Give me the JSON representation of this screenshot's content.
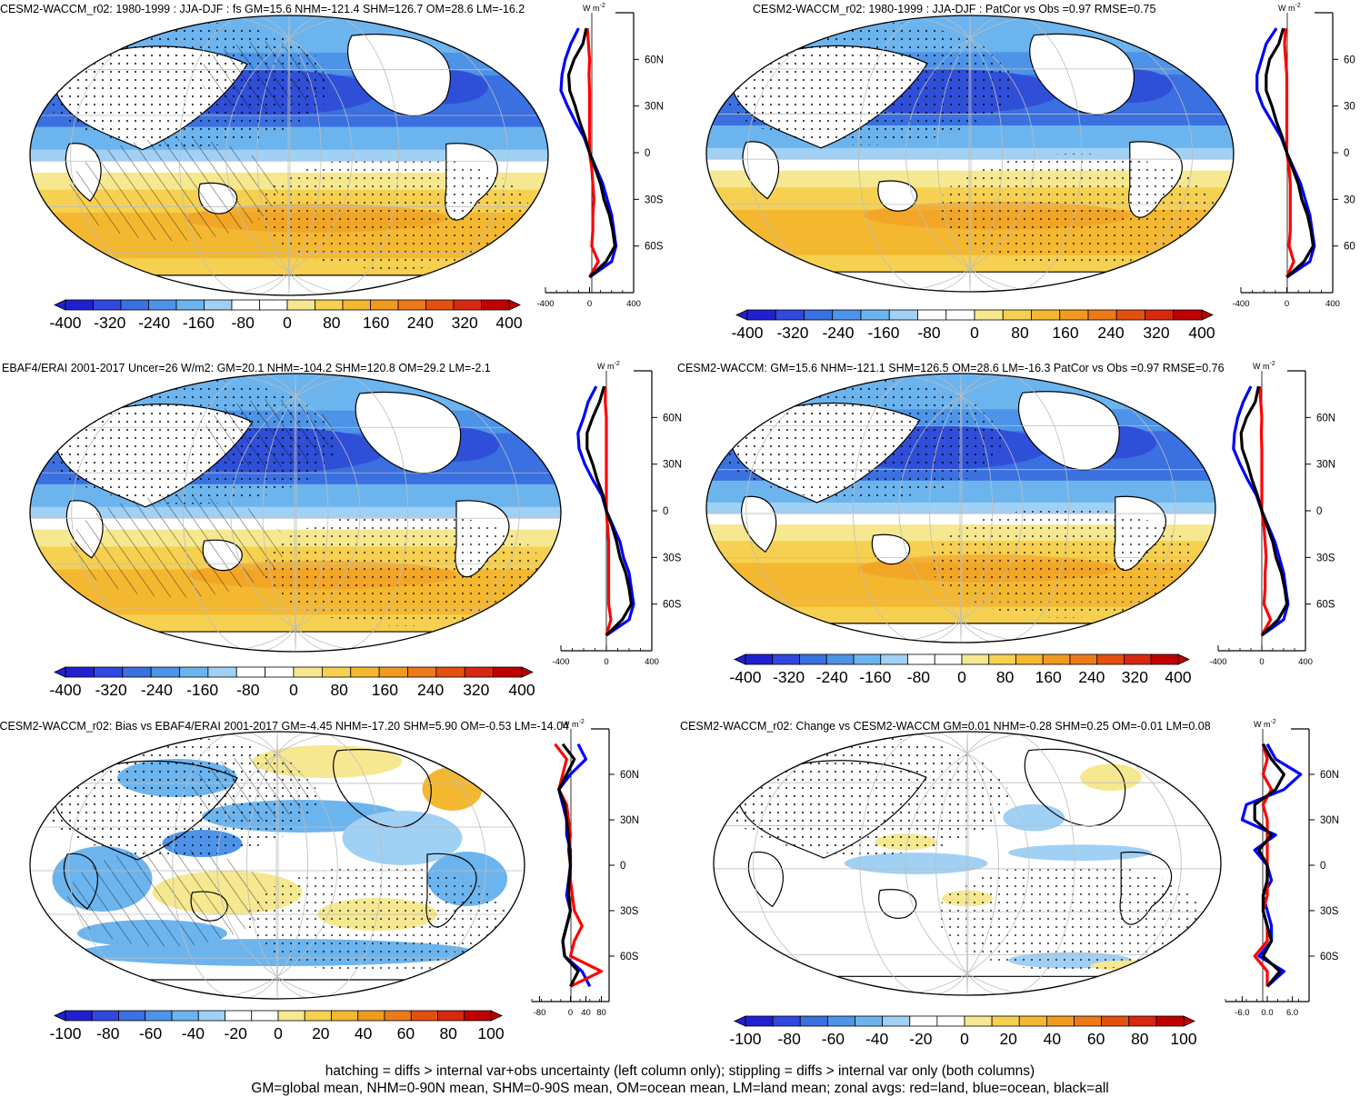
{
  "chart_data": [
    {
      "type": "heatmap",
      "title": "CESM2-WACCM_r02: 1980-1999 : JJA-DJF : fs GM=15.6 NHM=-121.4 SHM=126.7 OM=28.6 LM=-16.2",
      "colorbar": {
        "ticks": [
          "-400",
          "-320",
          "-240",
          "-160",
          "-80",
          "0",
          "80",
          "160",
          "240",
          "320",
          "400"
        ],
        "range": [
          -400,
          400
        ]
      },
      "zonal": {
        "xticks": [
          "-400",
          "0",
          "400"
        ],
        "xlim": [
          -400,
          400
        ],
        "unit": "W m",
        "unit_sup": "-2",
        "yticks": [
          "60N",
          "30N",
          "0",
          "30S",
          "60S"
        ],
        "lat": [
          80,
          70,
          60,
          50,
          40,
          30,
          20,
          10,
          0,
          -10,
          -20,
          -30,
          -40,
          -50,
          -60,
          -70,
          -80
        ],
        "land": [
          -20,
          -10,
          0,
          -5,
          0,
          0,
          0,
          0,
          0,
          20,
          30,
          40,
          30,
          30,
          20,
          80,
          0
        ],
        "ocean": [
          -100,
          -170,
          -220,
          -250,
          -260,
          -200,
          -130,
          -50,
          0,
          60,
          120,
          160,
          200,
          220,
          240,
          200,
          0
        ],
        "all": [
          -30,
          -60,
          -140,
          -190,
          -180,
          -130,
          -90,
          -40,
          0,
          50,
          100,
          130,
          180,
          210,
          230,
          150,
          0
        ]
      }
    },
    {
      "type": "heatmap",
      "title": "CESM2-WACCM_r02: 1980-1999 : JJA-DJF : PatCor vs Obs =0.97 RMSE=0.75",
      "colorbar": {
        "ticks": [
          "-400",
          "-320",
          "-240",
          "-160",
          "-80",
          "0",
          "80",
          "160",
          "240",
          "320",
          "400"
        ],
        "range": [
          -400,
          400
        ]
      },
      "zonal": {
        "xticks": [
          "-400",
          "0",
          "400"
        ],
        "xlim": [
          -400,
          400
        ],
        "unit": "W m",
        "unit_sup": "-2",
        "yticks": [
          "60",
          "30",
          "0",
          "30",
          "60"
        ],
        "lat": [
          80,
          70,
          60,
          50,
          40,
          30,
          20,
          10,
          0,
          -10,
          -20,
          -30,
          -40,
          -50,
          -60,
          -70,
          -80
        ],
        "land": [
          -10,
          -20,
          -10,
          0,
          0,
          0,
          0,
          0,
          0,
          20,
          30,
          30,
          30,
          30,
          20,
          60,
          0
        ],
        "ocean": [
          -90,
          -180,
          -220,
          -260,
          -260,
          -210,
          -130,
          -50,
          0,
          60,
          120,
          160,
          200,
          220,
          240,
          200,
          0
        ],
        "all": [
          -30,
          -70,
          -150,
          -180,
          -180,
          -130,
          -90,
          -40,
          0,
          50,
          100,
          130,
          180,
          210,
          230,
          150,
          0
        ]
      }
    },
    {
      "type": "heatmap",
      "title": "EBAF4/ERAI 2001-2017 Uncer=26 W/m2: GM=20.1 NHM=-104.2 SHM=120.8 OM=29.2 LM=-2.1",
      "colorbar": {
        "ticks": [
          "-400",
          "-320",
          "-240",
          "-160",
          "-80",
          "0",
          "80",
          "160",
          "240",
          "320",
          "400"
        ],
        "range": [
          -400,
          400
        ]
      },
      "zonal": {
        "xticks": [
          "-400",
          "0",
          "400"
        ],
        "xlim": [
          -400,
          400
        ],
        "unit": "W m",
        "unit_sup": "-2",
        "yticks": [
          "60N",
          "30N",
          "0",
          "30S",
          "60S"
        ],
        "lat": [
          80,
          70,
          60,
          50,
          40,
          30,
          20,
          10,
          0,
          -10,
          -20,
          -30,
          -40,
          -50,
          -60,
          -70,
          -80
        ],
        "land": [
          -10,
          -10,
          0,
          0,
          0,
          0,
          0,
          0,
          0,
          10,
          20,
          20,
          20,
          20,
          20,
          40,
          0
        ],
        "ocean": [
          -90,
          -160,
          -200,
          -250,
          -240,
          -190,
          -120,
          -40,
          0,
          60,
          120,
          150,
          200,
          220,
          240,
          200,
          0
        ],
        "all": [
          -20,
          -60,
          -120,
          -170,
          -170,
          -120,
          -80,
          -30,
          0,
          50,
          90,
          120,
          170,
          200,
          220,
          140,
          0
        ]
      }
    },
    {
      "type": "heatmap",
      "title": "CESM2-WACCM: GM=15.6 NHM=-121.1 SHM=126.5 OM=28.6 LM=-16.3 PatCor vs Obs =0.97 RMSE=0.76",
      "colorbar": {
        "ticks": [
          "-400",
          "-320",
          "-240",
          "-160",
          "-80",
          "0",
          "80",
          "160",
          "240",
          "320",
          "400"
        ],
        "range": [
          -400,
          400
        ]
      },
      "zonal": {
        "xticks": [
          "-400",
          "0",
          "400"
        ],
        "xlim": [
          -400,
          400
        ],
        "unit": "W m",
        "unit_sup": "-2",
        "yticks": [
          "60N",
          "30N",
          "0",
          "30S",
          "60S"
        ],
        "lat": [
          80,
          70,
          60,
          50,
          40,
          30,
          20,
          10,
          0,
          -10,
          -20,
          -30,
          -40,
          -50,
          -60,
          -70,
          -80
        ],
        "land": [
          -20,
          -10,
          0,
          -5,
          0,
          0,
          0,
          0,
          0,
          20,
          30,
          40,
          30,
          30,
          20,
          80,
          0
        ],
        "ocean": [
          -100,
          -170,
          -220,
          -250,
          -260,
          -200,
          -130,
          -50,
          0,
          60,
          120,
          160,
          200,
          220,
          240,
          200,
          0
        ],
        "all": [
          -30,
          -60,
          -140,
          -190,
          -180,
          -130,
          -90,
          -40,
          0,
          50,
          100,
          130,
          180,
          210,
          230,
          150,
          0
        ]
      }
    },
    {
      "type": "heatmap",
      "title": "CESM2-WACCM_r02: Bias vs EBAF4/ERAI 2001-2017 GM=-4.45 NHM=-17.20 SHM=5.90 OM=-0.53 LM=-14.04",
      "colorbar": {
        "ticks": [
          "-100",
          "-80",
          "-60",
          "-40",
          "-20",
          "0",
          "20",
          "40",
          "60",
          "80",
          "100"
        ],
        "range": [
          -100,
          100
        ]
      },
      "zonal": {
        "xticks": [
          "-80",
          "0",
          "40",
          "80"
        ],
        "xlim": [
          -100,
          100
        ],
        "unit": "W m",
        "unit_sup": "-2",
        "yticks": [
          "60N",
          "30N",
          "0",
          "30S",
          "60S"
        ],
        "lat": [
          80,
          70,
          60,
          50,
          40,
          30,
          20,
          10,
          0,
          -10,
          -20,
          -30,
          -40,
          -50,
          -60,
          -70,
          -80
        ],
        "land": [
          -40,
          -10,
          -20,
          -30,
          -10,
          -5,
          0,
          -5,
          0,
          0,
          5,
          10,
          30,
          10,
          0,
          80,
          0
        ],
        "ocean": [
          20,
          40,
          0,
          -30,
          -20,
          -10,
          -10,
          0,
          0,
          -5,
          -10,
          0,
          -10,
          -20,
          -15,
          30,
          50
        ],
        "all": [
          -20,
          10,
          -10,
          -30,
          -15,
          -10,
          -5,
          -3,
          0,
          -3,
          -5,
          0,
          -10,
          -20,
          -15,
          20,
          0
        ]
      }
    },
    {
      "type": "heatmap",
      "title": "CESM2-WACCM_r02: Change vs CESM2-WACCM GM=0.01 NHM=-0.28 SHM=0.25 OM=-0.01 LM=0.08",
      "colorbar": {
        "ticks": [
          "-100",
          "-80",
          "-60",
          "-40",
          "-20",
          "0",
          "20",
          "40",
          "60",
          "80",
          "100"
        ],
        "range": [
          -100,
          100
        ]
      },
      "zonal": {
        "xticks": [
          "-6.0",
          "0.0",
          "6.0"
        ],
        "xlim": [
          -10,
          10
        ],
        "unit": "W m",
        "unit_sup": "-2",
        "yticks": [
          "60N",
          "30N",
          "0",
          "30S",
          "60S"
        ],
        "lat": [
          80,
          70,
          60,
          50,
          40,
          30,
          20,
          10,
          0,
          -10,
          -20,
          -30,
          -40,
          -50,
          -60,
          -70,
          -80
        ],
        "land": [
          -1,
          0,
          -1,
          1,
          -1,
          0,
          0,
          0,
          0,
          0,
          0,
          -1,
          0,
          0,
          -3,
          0,
          0
        ],
        "ocean": [
          0,
          2,
          8,
          4,
          -5,
          -6,
          2,
          -3,
          0,
          1,
          -1,
          0,
          1,
          1,
          -2,
          4,
          0
        ],
        "all": [
          -1,
          1,
          4,
          2,
          -3,
          -3,
          1,
          -2,
          0,
          0,
          -1,
          -1,
          0,
          1,
          -1,
          3,
          0
        ]
      }
    }
  ],
  "footer": {
    "line1": "hatching = diffs > internal var+obs uncertainty (left column only); stippling = diffs > internal var only (both columns)",
    "line2": "GM=global mean, NHM=0-90N mean, SHM=0-90S mean, OM=ocean mean, LM=land mean; zonal avgs: red=land, blue=ocean, black=all"
  },
  "colors": {
    "land_line": "#ff0000",
    "ocean_line": "#0000ff",
    "all_line": "#000000",
    "palette": [
      "#2020d0",
      "#3048e0",
      "#3a70e0",
      "#4d94e8",
      "#6cb4ee",
      "#a0d0f4",
      "#ffffff",
      "#ffffff",
      "#f6e890",
      "#f6d050",
      "#f4b830",
      "#f09a20",
      "#ec7a18",
      "#e45010",
      "#d82810",
      "#c00000"
    ]
  }
}
